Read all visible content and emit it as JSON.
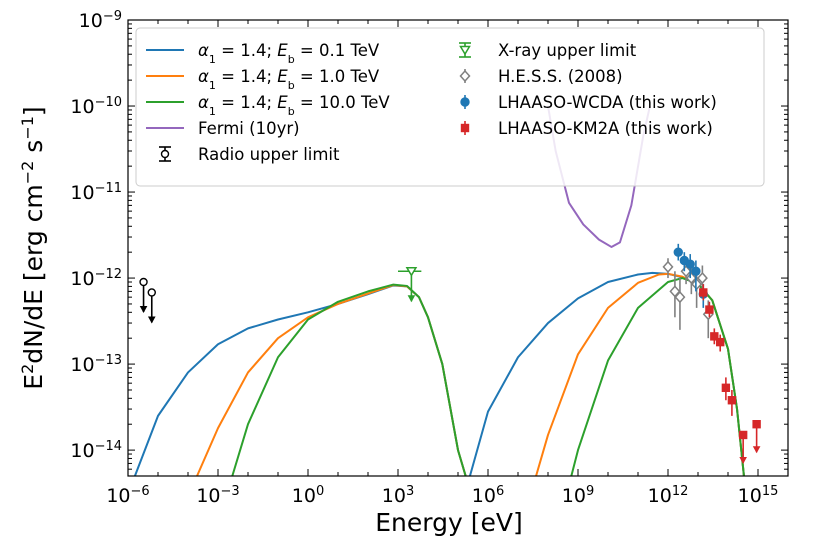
{
  "chart_data": {
    "type": "line",
    "title": "",
    "xlabel": "Energy [eV]",
    "ylabel": "E²dN/dE [erg cm⁻² s⁻¹]",
    "xscale": "log",
    "yscale": "log",
    "xlim": [
      1e-06,
      1e+16
    ],
    "ylim": [
      5e-15,
      1e-09
    ],
    "x_ticks": [
      {
        "value": 1e-06,
        "base": "10",
        "exp": "−6"
      },
      {
        "value": 0.001,
        "base": "10",
        "exp": "−3"
      },
      {
        "value": 1,
        "base": "10",
        "exp": "0"
      },
      {
        "value": 1000.0,
        "base": "10",
        "exp": "3"
      },
      {
        "value": 1000000.0,
        "base": "10",
        "exp": "6"
      },
      {
        "value": 1000000000.0,
        "base": "10",
        "exp": "9"
      },
      {
        "value": 1000000000000.0,
        "base": "10",
        "exp": "12"
      },
      {
        "value": 1000000000000000.0,
        "base": "10",
        "exp": "15"
      }
    ],
    "y_ticks": [
      {
        "value": 1e-14,
        "base": "10",
        "exp": "−14"
      },
      {
        "value": 1e-13,
        "base": "10",
        "exp": "−13"
      },
      {
        "value": 1e-12,
        "base": "10",
        "exp": "−12"
      },
      {
        "value": 1e-11,
        "base": "10",
        "exp": "−11"
      },
      {
        "value": 1e-10,
        "base": "10",
        "exp": "−10"
      },
      {
        "value": 1e-09,
        "base": "10",
        "exp": "−9"
      }
    ],
    "legend_position": "top",
    "series": [
      {
        "name": "α1 = 1.4; Eb = 0.1 TeV",
        "kind": "line",
        "color": "#1f77b4",
        "segments": [
          [
            [
              1.7e-06,
              5e-15
            ],
            [
              1e-05,
              2.5e-14
            ],
            [
              0.0001,
              8e-14
            ],
            [
              0.001,
              1.7e-13
            ],
            [
              0.01,
              2.6e-13
            ],
            [
              0.1,
              3.3e-13
            ],
            [
              1,
              4e-13
            ],
            [
              10,
              5e-13
            ],
            [
              100,
              6.5e-13
            ],
            [
              700,
              8.2e-13
            ],
            [
              2000,
              8e-13
            ],
            [
              5000,
              6e-13
            ],
            [
              10000.0,
              3.5e-13
            ],
            [
              30000.0,
              1e-13
            ],
            [
              100000.0,
              1e-14
            ],
            [
              180000.0,
              5e-15
            ]
          ],
          [
            [
              250000.0,
              5e-15
            ],
            [
              1000000.0,
              2.8e-14
            ],
            [
              10000000.0,
              1.2e-13
            ],
            [
              100000000.0,
              3e-13
            ],
            [
              1000000000.0,
              5.8e-13
            ],
            [
              10000000000.0,
              9e-13
            ],
            [
              100000000000.0,
              1.1e-12
            ],
            [
              300000000000.0,
              1.15e-12
            ],
            [
              1000000000000.0,
              1.12e-12
            ],
            [
              3000000000000.0,
              1.02e-12
            ],
            [
              10000000000000.0,
              8.5e-13
            ],
            [
              30000000000000.0,
              5.5e-13
            ],
            [
              100000000000000.0,
              1.5e-13
            ],
            [
              200000000000000.0,
              3e-14
            ],
            [
              340000000000000.0,
              5e-15
            ]
          ]
        ]
      },
      {
        "name": "α1 = 1.4; Eb = 1.0 TeV",
        "kind": "line",
        "color": "#ff7f0e",
        "segments": [
          [
            [
              0.0002,
              5e-15
            ],
            [
              0.001,
              1.8e-14
            ],
            [
              0.01,
              8e-14
            ],
            [
              0.1,
              2e-13
            ],
            [
              1,
              3.5e-13
            ],
            [
              10,
              5e-13
            ],
            [
              100,
              6.6e-13
            ],
            [
              700,
              8.3e-13
            ],
            [
              2000,
              8e-13
            ],
            [
              5000,
              6e-13
            ],
            [
              10000.0,
              3.5e-13
            ],
            [
              30000.0,
              1e-13
            ],
            [
              100000.0,
              1e-14
            ],
            [
              180000.0,
              5e-15
            ]
          ],
          [
            [
              40000000.0,
              5e-15
            ],
            [
              100000000.0,
              1.5e-14
            ],
            [
              1000000000.0,
              1.3e-13
            ],
            [
              10000000000.0,
              4.5e-13
            ],
            [
              100000000000.0,
              8.8e-13
            ],
            [
              500000000000.0,
              1.1e-12
            ],
            [
              1000000000000.0,
              1.12e-12
            ],
            [
              3000000000000.0,
              1.04e-12
            ],
            [
              10000000000000.0,
              8.6e-13
            ],
            [
              30000000000000.0,
              5.5e-13
            ],
            [
              100000000000000.0,
              1.5e-13
            ],
            [
              200000000000000.0,
              3e-14
            ],
            [
              340000000000000.0,
              5e-15
            ]
          ]
        ]
      },
      {
        "name": "α1 = 1.4; Eb = 10.0 TeV",
        "kind": "line",
        "color": "#2ca02c",
        "segments": [
          [
            [
              0.003,
              5e-15
            ],
            [
              0.01,
              2e-14
            ],
            [
              0.1,
              1.2e-13
            ],
            [
              1,
              3.3e-13
            ],
            [
              10,
              5.3e-13
            ],
            [
              100,
              7e-13
            ],
            [
              700,
              8.4e-13
            ],
            [
              2000,
              8.1e-13
            ],
            [
              5000,
              6e-13
            ],
            [
              10000.0,
              3.5e-13
            ],
            [
              30000.0,
              1e-13
            ],
            [
              100000.0,
              1e-14
            ],
            [
              180000.0,
              5e-15
            ]
          ],
          [
            [
              600000000.0,
              5e-15
            ],
            [
              1000000000.0,
              1e-14
            ],
            [
              10000000000.0,
              1.1e-13
            ],
            [
              100000000000.0,
              4.5e-13
            ],
            [
              1000000000000.0,
              9e-13
            ],
            [
              3000000000000.0,
              1e-12
            ],
            [
              10000000000000.0,
              8.6e-13
            ],
            [
              30000000000000.0,
              5.5e-13
            ],
            [
              100000000000000.0,
              1.5e-13
            ],
            [
              200000000000000.0,
              3e-14
            ],
            [
              340000000000000.0,
              5e-15
            ]
          ]
        ]
      },
      {
        "name": "Fermi (10yr)",
        "kind": "line",
        "color": "#9467bd",
        "segments": [
          [
            [
              100000000.0,
              1e-10
            ],
            [
              180000000.0,
              3e-11
            ],
            [
              500000000.0,
              7.5e-12
            ],
            [
              1500000000.0,
              4.2e-12
            ],
            [
              5000000000.0,
              2.8e-12
            ],
            [
              13000000000.0,
              2.3e-12
            ],
            [
              25000000000.0,
              2.6e-12
            ],
            [
              60000000000.0,
              7e-12
            ],
            [
              150000000000.0,
              4.5e-11
            ],
            [
              250000000000.0,
              1e-10
            ]
          ]
        ]
      },
      {
        "name": "Radio upper limit",
        "kind": "upper_limit",
        "color": "#000000",
        "marker": "circle-open",
        "points": [
          [
            3.3e-06,
            9e-13
          ],
          [
            6.2e-06,
            6.8e-13
          ]
        ]
      },
      {
        "name": "X-ray upper limit",
        "kind": "upper_limit",
        "color": "#2ca02c",
        "marker": "triangle-down-open",
        "xerr": [
          1000.0,
          6000.0
        ],
        "points": [
          [
            2800.0,
            1.2e-12
          ]
        ]
      },
      {
        "name": "H.E.S.S. (2008)",
        "kind": "points",
        "color": "#808080",
        "marker": "diamond-open",
        "points": [
          [
            1000000000000.0,
            1.35e-12
          ],
          [
            1700000000000.0,
            7e-13
          ],
          [
            2500000000000.0,
            6e-13
          ],
          [
            4000000000000.0,
            1.2e-12
          ],
          [
            6000000000000.0,
            1e-12
          ],
          [
            9000000000000.0,
            8.5e-13
          ],
          [
            14000000000000.0,
            1e-12
          ],
          [
            22000000000000.0,
            3.8e-13
          ]
        ],
        "yerr_low": [
          1e-12,
          3.5e-13,
          2.5e-13,
          8.5e-13,
          6.5e-13,
          4.5e-13,
          6.5e-13,
          2e-13
        ],
        "yerr_high": [
          1.7e-12,
          1.2e-12,
          1e-12,
          1.6e-12,
          1.4e-12,
          1.2e-12,
          1.4e-12,
          5.5e-13
        ]
      },
      {
        "name": "LHAASO-WCDA (this work)",
        "kind": "points",
        "color": "#1f77b4",
        "marker": "circle",
        "points": [
          [
            2200000000000.0,
            2e-12
          ],
          [
            3500000000000.0,
            1.6e-12
          ],
          [
            5500000000000.0,
            1.45e-12
          ],
          [
            8500000000000.0,
            1.2e-12
          ],
          [
            15000000000000.0,
            6.5e-13
          ]
        ],
        "yerr_low": [
          1.6e-12,
          1.2e-12,
          1e-12,
          7e-13,
          4.5e-13
        ],
        "yerr_high": [
          2.5e-12,
          2e-12,
          1.9e-12,
          1.6e-12,
          8.5e-13
        ]
      },
      {
        "name": "LHAASO-KM2A (this work)",
        "kind": "points",
        "color": "#d62728",
        "marker": "square",
        "points": [
          [
            15000000000000.0,
            6.8e-13
          ],
          [
            24000000000000.0,
            4.3e-13
          ],
          [
            35000000000000.0,
            2.1e-13
          ],
          [
            55000000000000.0,
            1.8e-13
          ],
          [
            85000000000000.0,
            5.3e-14
          ],
          [
            135000000000000.0,
            3.8e-14
          ]
        ],
        "yerr_low": [
          5.5e-13,
          3.5e-13,
          1.7e-13,
          1.4e-13,
          3.8e-14,
          2.5e-14
        ],
        "yerr_high": [
          8.5e-13,
          5.3e-13,
          2.6e-13,
          2.2e-13,
          7e-14,
          5e-14
        ],
        "upper_limits": [
          [
            320000000000000.0,
            1.5e-14
          ],
          [
            900000000000000.0,
            2e-14
          ]
        ]
      }
    ],
    "legend": [
      {
        "type": "line",
        "color": "#1f77b4",
        "label": "α1 = 1.4; Eb = 0.1 TeV"
      },
      {
        "type": "line",
        "color": "#ff7f0e",
        "label": "α1 = 1.4; Eb = 1.0 TeV"
      },
      {
        "type": "line",
        "color": "#2ca02c",
        "label": "α1 = 1.4; Eb = 10.0 TeV"
      },
      {
        "type": "line",
        "color": "#9467bd",
        "label": "Fermi (10yr)"
      },
      {
        "type": "ul-circle",
        "color": "#000000",
        "label": "Radio upper limit"
      },
      {
        "type": "ul-triangle",
        "color": "#2ca02c",
        "label": "X-ray upper limit"
      },
      {
        "type": "diamond",
        "color": "#808080",
        "label": "H.E.S.S. (2008)"
      },
      {
        "type": "circle",
        "color": "#1f77b4",
        "label": "LHAASO-WCDA (this work)"
      },
      {
        "type": "square",
        "color": "#d62728",
        "label": "LHAASO-KM2A (this work)"
      }
    ]
  }
}
